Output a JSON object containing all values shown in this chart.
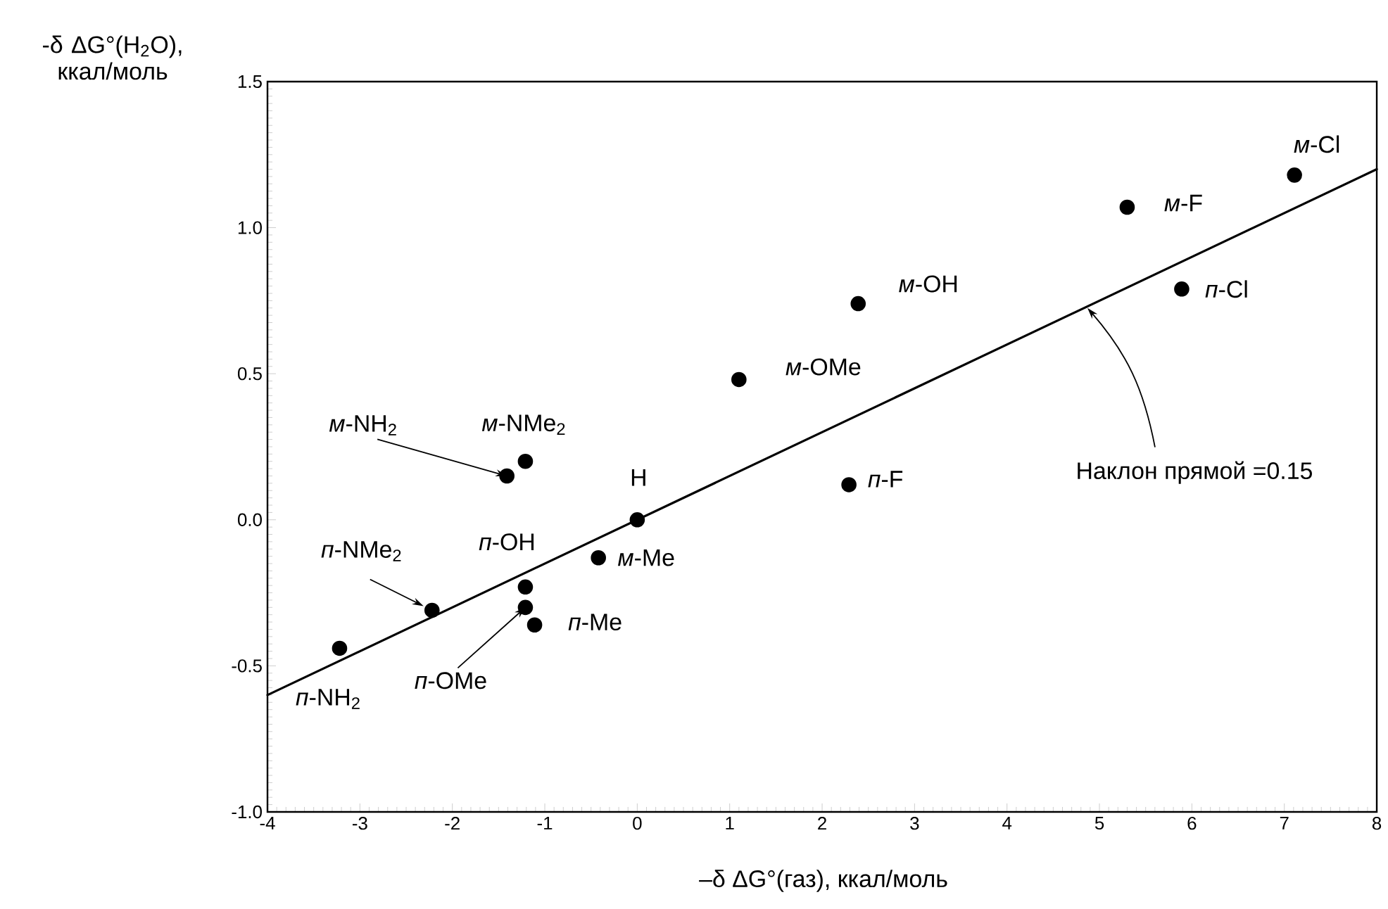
{
  "chart_data": {
    "type": "scatter",
    "xlabel": "–δ ΔG°(газ), ккал/моль",
    "ylabel": "-δ ΔG°(H$_{2}$O), ккал/моль",
    "xlim": [
      -4,
      8
    ],
    "xticks": [
      -4,
      -3,
      -2,
      -1,
      0,
      1,
      2,
      3,
      4,
      5,
      6,
      7,
      8
    ],
    "ylim": [
      -1.0,
      1.5
    ],
    "yticks": [
      {
        "value": -1.0,
        "label": "-1.0"
      },
      -0.5,
      {
        "value": 0.0,
        "label": "0.0"
      },
      0.5,
      {
        "value": 1.0,
        "label": "1.0"
      },
      1.5
    ],
    "series": [
      {
        "type": "scatter",
        "color": "#000000",
        "marker": "circle",
        "x": [
          7.11,
          5.3,
          5.89,
          2.39,
          1.1,
          2.29,
          0.0,
          -0.42,
          -1.11,
          -1.21,
          -1.21,
          -2.22,
          -3.22,
          -1.41,
          -1.21
        ],
        "values": [
          1.18,
          1.07,
          0.79,
          0.74,
          0.48,
          0.12,
          0.0,
          -0.13,
          -0.36,
          -0.23,
          -0.3,
          -0.31,
          -0.44,
          0.15,
          0.2
        ]
      },
      {
        "type": "line",
        "color": "#000000",
        "marker": "none",
        "line_style": "solid",
        "x": [
          -4,
          8
        ],
        "values": [
          -0.6,
          1.2
        ]
      }
    ],
    "annotations": [
      {
        "text": "*м*-Cl",
        "x": 7.11,
        "y": 1.18
      },
      {
        "text": "*м*-F",
        "x": 5.3,
        "y": 1.07
      },
      {
        "text": "*п*-Cl",
        "x": 5.89,
        "y": 0.79
      },
      {
        "text": "*м*-OH",
        "x": 2.39,
        "y": 0.74
      },
      {
        "text": "*м*-OMe",
        "x": 1.1,
        "y": 0.48
      },
      {
        "text": "*п*-F",
        "x": 2.29,
        "y": 0.12
      },
      {
        "text": "H",
        "x": 0.0,
        "y": 0.0
      },
      {
        "text": "*м*-Me",
        "x": -0.42,
        "y": -0.13
      },
      {
        "text": "*п*-Me",
        "x": -1.11,
        "y": -0.36
      },
      {
        "text": "*п*-OH",
        "x": -1.21,
        "y": -0.23
      },
      {
        "text": "*п*-OMe",
        "x": -1.21,
        "y": -0.3
      },
      {
        "text": "*п*-NMe$_{2}$",
        "x": -2.22,
        "y": -0.31
      },
      {
        "text": "*п*-NH$_{2}$",
        "x": -3.22,
        "y": -0.44
      },
      {
        "text": "*м*-NH$_{2}$",
        "x": -1.41,
        "y": 0.15
      },
      {
        "text": "*м*-NMe$_{2}$",
        "x": -1.21,
        "y": 0.2
      },
      {
        "text": "Наклон прямой =0.15",
        "x": 4.87,
        "y": 0.73
      }
    ]
  }
}
